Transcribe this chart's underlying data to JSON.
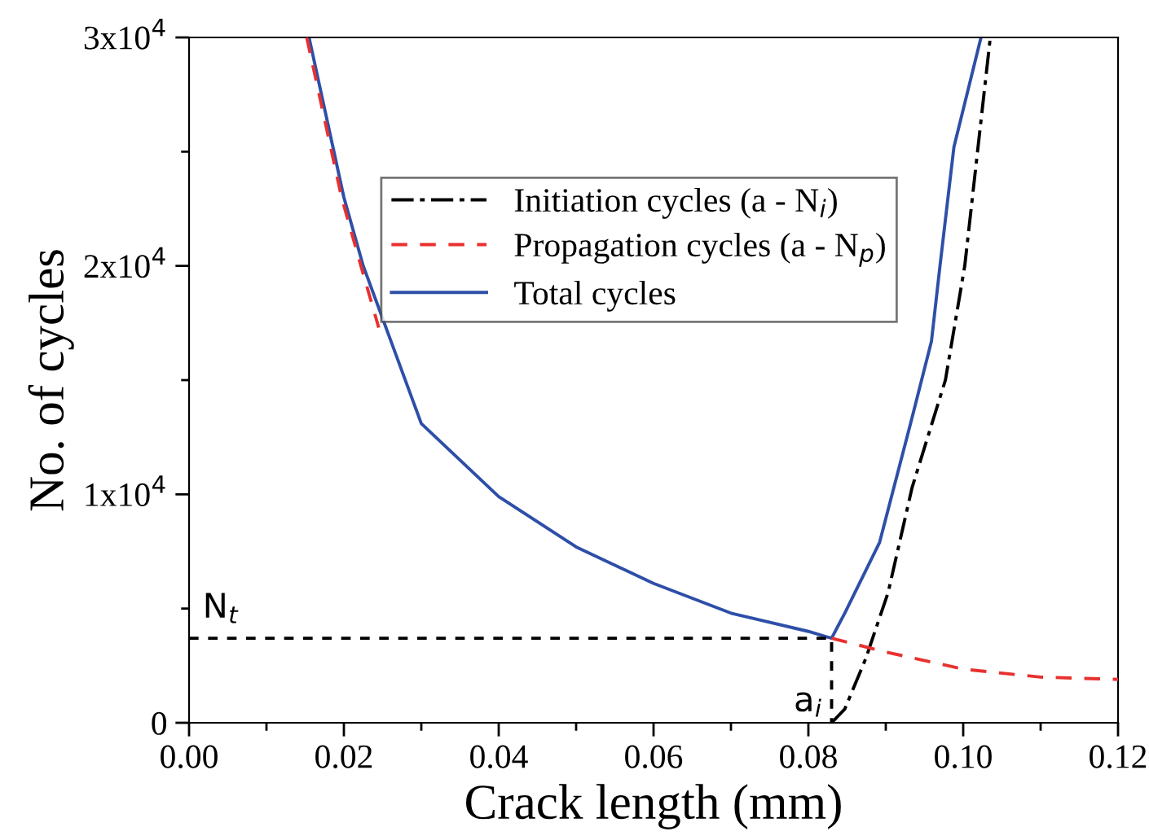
{
  "chart_data": {
    "type": "line",
    "xlabel": "Crack length (mm)",
    "ylabel": "No. of cycles",
    "xlim": [
      0,
      0.12
    ],
    "ylim": [
      0,
      30000
    ],
    "xticks": [
      {
        "value": 0,
        "label": "0.00"
      },
      {
        "value": 0.02,
        "label": "0.02"
      },
      {
        "value": 0.04,
        "label": "0.04"
      },
      {
        "value": 0.06,
        "label": "0.06"
      },
      {
        "value": 0.08,
        "label": "0.08"
      },
      {
        "value": 0.1,
        "label": "0.10"
      },
      {
        "value": 0.12,
        "label": "0.12"
      }
    ],
    "yticks": [
      0,
      {
        "value": 10000,
        "label": "1x10$^{4}$"
      },
      {
        "value": 20000,
        "label": "2x10$^{4}$"
      },
      {
        "value": 30000,
        "label": "3x10$^{4}$"
      }
    ],
    "grid": false,
    "legend": "top right",
    "marker": "none",
    "series": [
      {
        "name": "Initiation cycles (a - N$_{i}$)",
        "color": "#000000",
        "line_style": "dashdot",
        "x": [
          0.083,
          0.0847,
          0.0874,
          0.0903,
          0.0934,
          0.0977,
          0.1002,
          0.1035
        ],
        "values": [
          0,
          600,
          2800,
          5700,
          10300,
          15000,
          20000,
          30000
        ]
      },
      {
        "name": "Propagation cycles (a - N$_{p}$)",
        "color": "#e8312f",
        "line_style": "dashed",
        "x": [
          0.0152,
          0.0197,
          0.0222,
          0.0245,
          0.04,
          0.05,
          0.06,
          0.07,
          0.08,
          0.083,
          0.09,
          0.1,
          0.11,
          0.12
        ],
        "values": [
          30000,
          23000,
          20000,
          17300,
          null,
          null,
          null,
          null,
          null,
          3700,
          3100,
          2350,
          2000,
          1900
        ]
      },
      {
        "name": "Total cycles",
        "color": "#2e4fa8",
        "line_style": "solid",
        "x": [
          0.0155,
          0.02,
          0.0225,
          0.03,
          0.04,
          0.05,
          0.06,
          0.07,
          0.08,
          0.083,
          0.0847,
          0.0892,
          0.0932,
          0.0959,
          0.097,
          0.0988,
          0.1023
        ],
        "values": [
          30000,
          23000,
          20000,
          13100,
          9900,
          7700,
          6100,
          4800,
          4000,
          3700,
          4800,
          7900,
          13100,
          16700,
          20000,
          25200,
          30000
        ]
      },
      {
        "color": "#000000",
        "line_style": "dotted",
        "x": [
          0,
          0.083,
          0.083
        ],
        "values": [
          3700,
          3700,
          0
        ]
      }
    ],
    "annotations": [
      {
        "text": "N$_{t}$",
        "x": 0,
        "y": 3700
      },
      {
        "text": "a$_{i}$",
        "x": 0.083,
        "y": 0
      }
    ]
  }
}
